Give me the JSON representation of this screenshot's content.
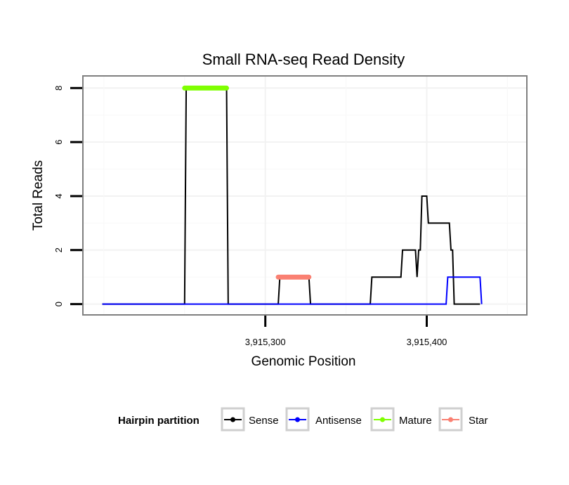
{
  "chart_data": {
    "type": "line",
    "title": "Small RNA-seq Read Density",
    "xlabel": "Genomic Position",
    "ylabel": "Total Reads",
    "xlim": [
      3915187,
      3915462
    ],
    "ylim": [
      -0.4,
      8.45
    ],
    "x_ticks": [
      3915300,
      3915400
    ],
    "x_tick_labels": [
      "3,915,300",
      "3,915,400"
    ],
    "y_ticks": [
      0,
      2,
      4,
      6,
      8
    ],
    "y_tick_labels": [
      "0",
      "2",
      "4",
      "6",
      "8"
    ],
    "grid": true,
    "legend": {
      "title": "Hairpin partition",
      "position": "bottom",
      "entries": [
        {
          "label": "Sense",
          "color": "#000000"
        },
        {
          "label": "Antisense",
          "color": "#0000ff"
        },
        {
          "label": "Mature",
          "color": "#7fff00"
        },
        {
          "label": "Star",
          "color": "#fa8072"
        }
      ]
    },
    "series": [
      {
        "name": "Sense",
        "color": "#000000",
        "x": [
          3915199,
          3915250,
          3915251,
          3915276,
          3915277,
          3915308,
          3915309,
          3915327,
          3915328,
          3915346,
          3915347,
          3915365,
          3915366,
          3915384,
          3915385,
          3915386,
          3915393,
          3915394,
          3915395,
          3915396,
          3915397,
          3915400,
          3915401,
          3915402,
          3915404,
          3915405,
          3915414,
          3915415,
          3915416,
          3915417,
          3915418,
          3915419,
          3915425,
          3915426,
          3915432,
          3915433
        ],
        "values": [
          0,
          0,
          8,
          8,
          0,
          0,
          1,
          1,
          0,
          0,
          0,
          0,
          1,
          1,
          2,
          2,
          2,
          1,
          2,
          2,
          4,
          4,
          3,
          3,
          3,
          3,
          3,
          2,
          2,
          0,
          0,
          0,
          0,
          0,
          0,
          0
        ]
      },
      {
        "name": "Antisense",
        "color": "#0000ff",
        "x": [
          3915199,
          3915249,
          3915250,
          3915277,
          3915278,
          3915308,
          3915309,
          3915327,
          3915328,
          3915366,
          3915367,
          3915412,
          3915413,
          3915433,
          3915434
        ],
        "values": [
          0,
          0,
          0,
          0,
          0,
          0,
          0,
          0,
          0,
          0,
          0,
          0,
          1,
          1,
          0
        ]
      },
      {
        "name": "Mature",
        "color": "#7fff00",
        "x": [
          3915250,
          3915276
        ],
        "values": [
          8,
          8
        ]
      },
      {
        "name": "Star",
        "color": "#fa8072",
        "x": [
          3915308,
          3915327
        ],
        "values": [
          1,
          1
        ]
      }
    ]
  }
}
